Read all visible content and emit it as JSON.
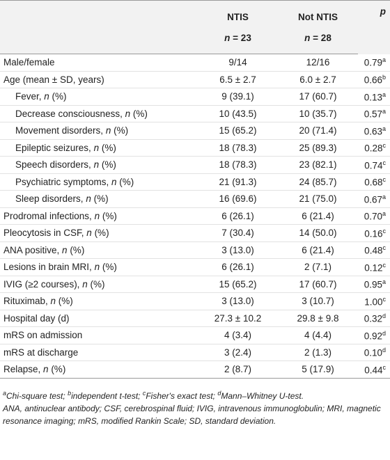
{
  "table": {
    "header": {
      "columns": [
        {
          "name": "NTIS",
          "n": [
            {
              "italic": "n"
            },
            " = 23"
          ]
        },
        {
          "name": "Not NTIS",
          "n": [
            {
              "italic": "n"
            },
            " = 28"
          ]
        }
      ],
      "p": "p"
    },
    "rows": [
      {
        "label": [
          "Male/female"
        ],
        "ntis": "9/14",
        "not_ntis": "12/16",
        "p": "0.79",
        "note": "a"
      },
      {
        "label": [
          "Age (mean ± SD, years)"
        ],
        "ntis": "6.5 ± 2.7",
        "not_ntis": "6.0 ± 2.7",
        "p": "0.66",
        "note": "b",
        "subrows": [
          {
            "label": [
              "Fever, ",
              {
                "italic": "n"
              },
              " (%)"
            ],
            "ntis": "9 (39.1)",
            "not_ntis": "17 (60.7)",
            "p": "0.13",
            "note": "a"
          },
          {
            "label": [
              "Decrease consciousness, ",
              {
                "italic": "n"
              },
              " (%)"
            ],
            "ntis": "10 (43.5)",
            "not_ntis": "10 (35.7)",
            "p": "0.57",
            "note": "a"
          },
          {
            "label": [
              "Movement disorders, ",
              {
                "italic": "n"
              },
              " (%)"
            ],
            "ntis": "15 (65.2)",
            "not_ntis": "20 (71.4)",
            "p": "0.63",
            "note": "a"
          },
          {
            "label": [
              "Epileptic seizures, ",
              {
                "italic": "n"
              },
              " (%)"
            ],
            "ntis": "18 (78.3)",
            "not_ntis": "25 (89.3)",
            "p": "0.28",
            "note": "c"
          },
          {
            "label": [
              "Speech disorders, ",
              {
                "italic": "n"
              },
              " (%)"
            ],
            "ntis": "18 (78.3)",
            "not_ntis": "23 (82.1)",
            "p": "0.74",
            "note": "c"
          },
          {
            "label": [
              "Psychiatric symptoms, ",
              {
                "italic": "n"
              },
              " (%)"
            ],
            "ntis": "21 (91.3)",
            "not_ntis": "24 (85.7)",
            "p": "0.68",
            "note": "c"
          },
          {
            "label": [
              "Sleep disorders, ",
              {
                "italic": "n"
              },
              " (%)"
            ],
            "ntis": "16 (69.6)",
            "not_ntis": "21 (75.0)",
            "p": "0.67",
            "note": "a"
          }
        ]
      },
      {
        "label": [
          "Prodromal infections, ",
          {
            "italic": "n"
          },
          " (%)"
        ],
        "ntis": "6 (26.1)",
        "not_ntis": "6 (21.4)",
        "p": "0.70",
        "note": "a"
      },
      {
        "label": [
          "Pleocytosis in CSF, ",
          {
            "italic": "n"
          },
          " (%)"
        ],
        "ntis": "7 (30.4)",
        "not_ntis": "14 (50.0)",
        "p": "0.16",
        "note": "c"
      },
      {
        "label": [
          "ANA positive, ",
          {
            "italic": "n"
          },
          " (%)"
        ],
        "ntis": "3 (13.0)",
        "not_ntis": "6 (21.4)",
        "p": "0.48",
        "note": "c"
      },
      {
        "label": [
          "Lesions in brain MRI, ",
          {
            "italic": "n"
          },
          " (%)"
        ],
        "ntis": "6 (26.1)",
        "not_ntis": "2 (7.1)",
        "p": "0.12",
        "note": "c"
      },
      {
        "label": [
          "IVIG (≥2 courses), ",
          {
            "italic": "n"
          },
          " (%)"
        ],
        "ntis": "15 (65.2)",
        "not_ntis": "17 (60.7)",
        "p": "0.95",
        "note": "a"
      },
      {
        "label": [
          "Rituximab, ",
          {
            "italic": "n"
          },
          " (%)"
        ],
        "ntis": "3 (13.0)",
        "not_ntis": "3 (10.7)",
        "p": "1.00",
        "note": "c"
      },
      {
        "label": [
          "Hospital day (d)"
        ],
        "ntis": "27.3 ± 10.2",
        "not_ntis": "29.8 ± 9.8",
        "p": "0.32",
        "note": "d"
      },
      {
        "label": [
          "mRS on admission"
        ],
        "ntis": "4 (3.4)",
        "not_ntis": "4 (4.4)",
        "p": "0.92",
        "note": "d"
      },
      {
        "label": [
          "mRS at discharge"
        ],
        "ntis": "3 (2.4)",
        "not_ntis": "2 (1.3)",
        "p": "0.10",
        "note": "d"
      },
      {
        "label": [
          "Relapse, ",
          {
            "italic": "n"
          },
          " (%)"
        ],
        "ntis": "2 (8.7)",
        "not_ntis": "5 (17.9)",
        "p": "0.44",
        "note": "c"
      }
    ],
    "footnotes": [
      {
        "mark": "a",
        "text": "Chi-square test; "
      },
      {
        "mark": "b",
        "text": "independent t-test; "
      },
      {
        "mark": "c",
        "text": "Fisher's exact test; "
      },
      {
        "mark": "d",
        "text": "Mann–Whitney U-test."
      }
    ],
    "abbreviations": "ANA, antinuclear antibody; CSF, cerebrospinal fluid; IVIG, intravenous immunoglobulin; MRI, magnetic resonance imaging; mRS, modified Rankin Scale; SD, standard deviation."
  }
}
